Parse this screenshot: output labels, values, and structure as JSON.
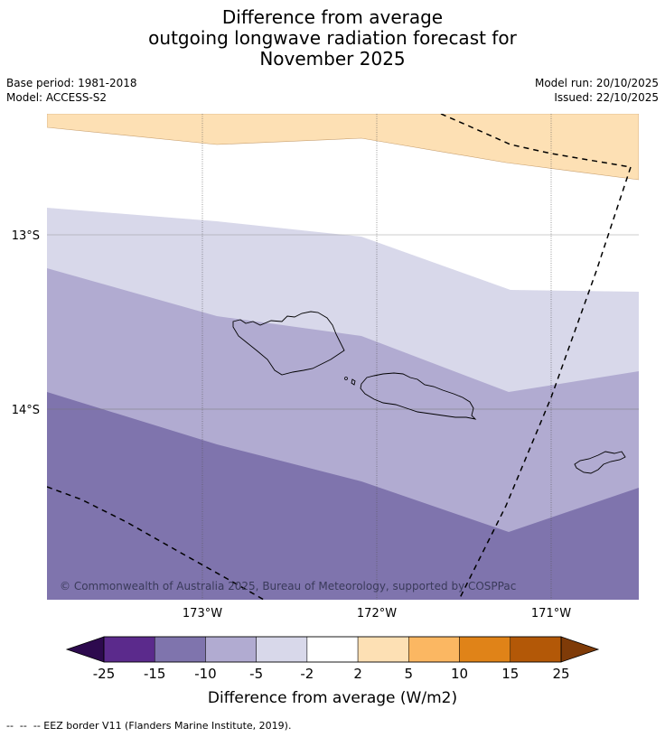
{
  "title": {
    "line1": "Difference from average",
    "line2": "outgoing longwave radiation forecast for",
    "line3": "November 2025"
  },
  "meta": {
    "base_period": "Base period: 1981-2018",
    "model": "Model: ACCESS-S2",
    "model_run": "Model run: 20/10/2025",
    "issued": "Issued: 22/10/2025"
  },
  "map": {
    "lat_labels": [
      "13°S",
      "14°S"
    ],
    "lon_labels": [
      "173°W",
      "172°W",
      "171°W"
    ],
    "copyright": "© Commonwealth of Australia 2025, Bureau of Meteorology, supported by COSPPac"
  },
  "colorbar": {
    "tick_labels": [
      "-25",
      "-15",
      "-10",
      "-5",
      "-2",
      "2",
      "5",
      "10",
      "15",
      "25"
    ],
    "colors": [
      "#5b2a8c",
      "#7f74ad",
      "#b1abd1",
      "#d8d8ea",
      "#ffffff",
      "#fde0b4",
      "#fbb762",
      "#e08318",
      "#b35807"
    ],
    "under_color": "#2d0a4e",
    "over_color": "#7f3b08",
    "title": "Difference from average (W/m2)"
  },
  "footer": {
    "legend_text": "--  --  -- EEZ border V11 (Flanders Marine Institute, 2019)."
  }
}
